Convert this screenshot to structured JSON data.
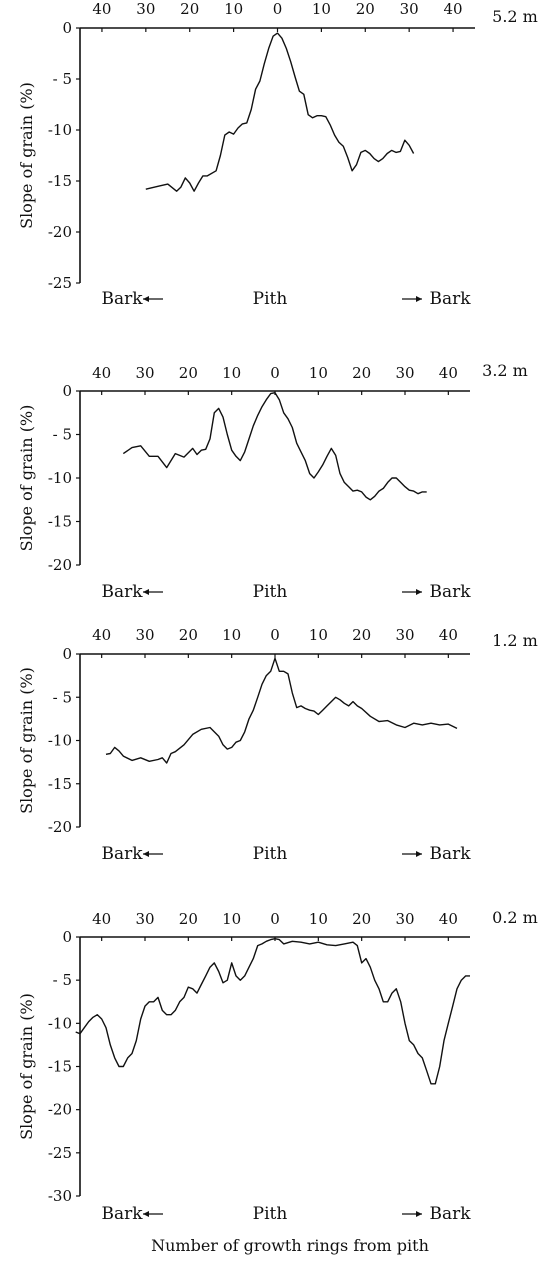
{
  "figure": {
    "xlabel": "Number of growth rings from pith"
  },
  "chart_data": [
    {
      "type": "line",
      "height_label": "5.2 m",
      "ylabel": "Slope of grain (%)",
      "direction_labels": [
        "Bark",
        "Pith",
        "Bark"
      ],
      "x_tick_labels": [
        "40",
        "30",
        "20",
        "10",
        "0",
        "10",
        "20",
        "30",
        "40"
      ],
      "y_tick_labels": [
        "0",
        "- 5",
        "-10",
        "-15",
        "-20",
        "-25"
      ],
      "xlim": [
        -45,
        45
      ],
      "ylim": [
        -25,
        0
      ],
      "x": [
        -30,
        -27,
        -25,
        -23,
        -22,
        -21,
        -20,
        -19,
        -18,
        -17,
        -16,
        -14,
        -13,
        -12,
        -11,
        -10,
        -9,
        -8,
        -7,
        -6,
        -5,
        -4,
        -3,
        -2,
        -1,
        0,
        1,
        2,
        3,
        4,
        5,
        6,
        7,
        8,
        9,
        10,
        11,
        12,
        13,
        14,
        15,
        16,
        17,
        18,
        19,
        20,
        21,
        22,
        23,
        24,
        25,
        26,
        27,
        28,
        29,
        30,
        31
      ],
      "y": [
        -15.8,
        -15.5,
        -15.3,
        -16,
        -15.6,
        -14.7,
        -15.2,
        -16,
        -15.2,
        -14.5,
        -14.5,
        -14,
        -12.5,
        -10.5,
        -10.2,
        -10.4,
        -9.8,
        -9.4,
        -9.3,
        -8,
        -6,
        -5.2,
        -3.5,
        -2,
        -0.8,
        -0.5,
        -1,
        -2,
        -3.3,
        -4.8,
        -6.2,
        -6.5,
        -8.5,
        -8.8,
        -8.6,
        -8.6,
        -8.7,
        -9.5,
        -10.5,
        -11.2,
        -11.6,
        -12.7,
        -14,
        -13.4,
        -12.2,
        -12,
        -12.3,
        -12.8,
        -13.1,
        -12.8,
        -12.3,
        -12,
        -12.2,
        -12.1,
        -11,
        -11.5,
        -12.3
      ]
    },
    {
      "type": "line",
      "height_label": "3.2 m",
      "ylabel": "Slope of grain (%)",
      "direction_labels": [
        "Bark",
        "Pith",
        "Bark"
      ],
      "x_tick_labels": [
        "40",
        "30",
        "20",
        "10",
        "0",
        "10",
        "20",
        "30",
        "40"
      ],
      "y_tick_labels": [
        "0",
        "- 5",
        "-10",
        "-15",
        "-20"
      ],
      "xlim": [
        -45,
        45
      ],
      "ylim": [
        -20,
        0
      ],
      "x": [
        -35,
        -33,
        -31,
        -29,
        -27,
        -25,
        -23,
        -21,
        -19,
        -18,
        -17,
        -16,
        -15,
        -14,
        -13,
        -12,
        -11,
        -10,
        -9,
        -8,
        -7,
        -6,
        -5,
        -4,
        -3,
        -2,
        -1,
        0,
        1,
        2,
        3,
        4,
        5,
        6,
        7,
        8,
        9,
        10,
        11,
        12,
        13,
        14,
        15,
        16,
        17,
        18,
        19,
        20,
        21,
        22,
        23,
        24,
        25,
        26,
        27,
        28,
        29,
        30,
        31,
        32,
        33,
        34,
        35
      ],
      "y": [
        -7.2,
        -6.5,
        -6.3,
        -7.5,
        -7.5,
        -8.8,
        -7.2,
        -7.6,
        -6.6,
        -7.3,
        -6.8,
        -6.7,
        -5.5,
        -2.5,
        -2,
        -3,
        -5,
        -6.8,
        -7.5,
        -8,
        -7,
        -5.5,
        -4,
        -2.8,
        -1.8,
        -1,
        -0.3,
        -0.2,
        -1,
        -2.5,
        -3.2,
        -4.2,
        -6,
        -7,
        -8,
        -9.5,
        -10,
        -9.3,
        -8.5,
        -7.5,
        -6.6,
        -7.4,
        -9.5,
        -10.5,
        -11,
        -11.5,
        -11.4,
        -11.6,
        -12.2,
        -12.5,
        -12.1,
        -11.5,
        -11.2,
        -10.5,
        -10,
        -10,
        -10.5,
        -11,
        -11.4,
        -11.5,
        -11.8,
        -11.6,
        -11.6
      ]
    },
    {
      "type": "line",
      "height_label": "1.2 m",
      "ylabel": "Slope of grain (%)",
      "direction_labels": [
        "Bark",
        "Pith",
        "Bark"
      ],
      "x_tick_labels": [
        "40",
        "30",
        "20",
        "10",
        "0",
        "10",
        "20",
        "30",
        "40"
      ],
      "y_tick_labels": [
        "0",
        "- 5",
        "-10",
        "-15",
        "-20"
      ],
      "xlim": [
        -45,
        45
      ],
      "ylim": [
        -20,
        0
      ],
      "x": [
        -39,
        -38,
        -37,
        -36,
        -35,
        -33,
        -31,
        -29,
        -27,
        -26,
        -25,
        -24,
        -23,
        -21,
        -19,
        -17,
        -15,
        -13,
        -12,
        -11,
        -10,
        -9,
        -8,
        -7,
        -6,
        -5,
        -4,
        -3,
        -2,
        -1,
        0,
        1,
        2,
        3,
        4,
        5,
        6,
        7,
        8,
        9,
        10,
        11,
        12,
        13,
        14,
        15,
        16,
        17,
        18,
        19,
        20,
        22,
        24,
        26,
        28,
        30,
        32,
        34,
        36,
        38,
        40,
        42
      ],
      "y": [
        -11.6,
        -11.5,
        -10.8,
        -11.2,
        -11.8,
        -12.3,
        -12,
        -12.4,
        -12.2,
        -12,
        -12.6,
        -11.5,
        -11.3,
        -10.5,
        -9.3,
        -8.7,
        -8.5,
        -9.5,
        -10.5,
        -11,
        -10.8,
        -10.2,
        -10,
        -9,
        -7.5,
        -6.5,
        -5,
        -3.5,
        -2.5,
        -2,
        -0.5,
        -2,
        -2,
        -2.3,
        -4.5,
        -6.2,
        -6,
        -6.3,
        -6.5,
        -6.6,
        -7,
        -6.5,
        -6,
        -5.5,
        -5,
        -5.3,
        -5.7,
        -6,
        -5.5,
        -6,
        -6.3,
        -7.2,
        -7.8,
        -7.7,
        -8.2,
        -8.5,
        -8,
        -8.2,
        -8,
        -8.2,
        -8.1,
        -8.6
      ]
    },
    {
      "type": "line",
      "height_label": "0.2 m",
      "ylabel": "Slope of grain (%)",
      "direction_labels": [
        "Bark",
        "Pith",
        "Bark"
      ],
      "x_tick_labels": [
        "40",
        "30",
        "20",
        "10",
        "0",
        "10",
        "20",
        "30",
        "40"
      ],
      "y_tick_labels": [
        "0",
        "- 5",
        "-10",
        "-15",
        "-20",
        "-25",
        "-30"
      ],
      "xlim": [
        -45,
        45
      ],
      "ylim": [
        -30,
        0
      ],
      "x": [
        -46,
        -45,
        -44,
        -43,
        -42,
        -41,
        -40,
        -39,
        -38,
        -37,
        -36,
        -35,
        -34,
        -33,
        -32,
        -31,
        -30,
        -29,
        -28,
        -27,
        -26,
        -25,
        -24,
        -23,
        -22,
        -21,
        -20,
        -19,
        -18,
        -17,
        -16,
        -15,
        -14,
        -13,
        -12,
        -11,
        -10,
        -9,
        -8,
        -7,
        -6,
        -5,
        -4,
        -3,
        -2,
        -1,
        0,
        1,
        2,
        4,
        6,
        8,
        10,
        12,
        14,
        16,
        18,
        19,
        20,
        21,
        22,
        23,
        24,
        25,
        26,
        27,
        28,
        29,
        30,
        31,
        32,
        33,
        34,
        35,
        36,
        37,
        38,
        39,
        40,
        41,
        42,
        43,
        44,
        45
      ],
      "y": [
        -11,
        -11.2,
        -10.5,
        -9.8,
        -9.3,
        -9,
        -9.5,
        -10.5,
        -12.5,
        -14,
        -15,
        -15,
        -14,
        -13.5,
        -12,
        -9.5,
        -8,
        -7.5,
        -7.5,
        -7,
        -8.5,
        -9,
        -9,
        -8.5,
        -7.5,
        -7,
        -5.8,
        -6,
        -6.5,
        -5.5,
        -4.5,
        -3.5,
        -3,
        -4,
        -5.3,
        -5,
        -3,
        -4.5,
        -5,
        -4.5,
        -3.5,
        -2.5,
        -1,
        -0.8,
        -0.5,
        -0.3,
        -0.2,
        -0.3,
        -0.8,
        -0.5,
        -0.6,
        -0.8,
        -0.6,
        -0.9,
        -1,
        -0.8,
        -0.6,
        -1,
        -3,
        -2.5,
        -3.5,
        -5,
        -6,
        -7.5,
        -7.5,
        -6.5,
        -6,
        -7.5,
        -10,
        -12,
        -12.5,
        -13.5,
        -14,
        -15.5,
        -17,
        -17,
        -15,
        -12,
        -10,
        -8,
        -6,
        -5,
        -4.5,
        -4.5
      ]
    }
  ]
}
